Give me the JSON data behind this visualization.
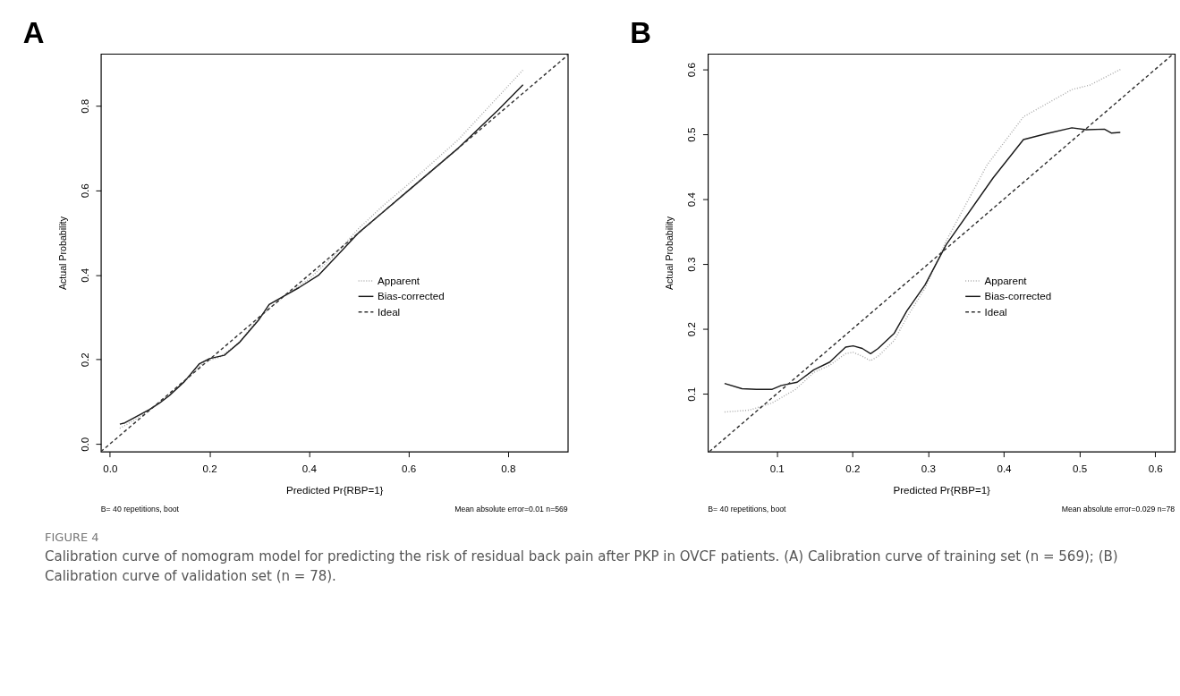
{
  "chart_data": [
    {
      "type": "line",
      "title": "A",
      "xlabel": "Predicted Pr{RBP=1}",
      "ylabel": "Actual Probability",
      "xlim": [
        -0.018,
        0.92
      ],
      "ylim": [
        -0.018,
        0.923
      ],
      "xticks": [
        {
          "value": 0,
          "label": "0.0"
        },
        0.2,
        0.4,
        0.6,
        0.8
      ],
      "yticks": [
        {
          "value": 0,
          "label": "0.0"
        },
        0.2,
        0.4,
        0.6,
        0.8
      ],
      "legend": "right",
      "grid": false,
      "annotations": [
        "B= 40 repetitions, boot",
        "Mean absolute error=0.01 n=569",
        "FIGURE 4",
        "Calibration curve of nomogram model for predicting the risk of residual back pain after PKP in OVCF patients. (A) Calibration curve of training set (n = 569); (B) Calibration curve of validation set (n = 78)."
      ],
      "series": [
        {
          "name": "Apparent",
          "color": "#a8a8a8",
          "line_style": "dotted",
          "x": [
            0.02,
            0.05,
            0.1,
            0.15,
            0.19,
            0.22,
            0.26,
            0.3,
            0.35,
            0.4,
            0.45,
            0.5,
            0.55,
            0.6,
            0.7,
            0.83
          ],
          "values": [
            0.037,
            0.057,
            0.097,
            0.148,
            0.195,
            0.205,
            0.24,
            0.3,
            0.35,
            0.39,
            0.445,
            0.51,
            0.565,
            0.615,
            0.72,
            0.885
          ]
        },
        {
          "name": "Bias-corrected",
          "color": "#1a1a1a",
          "line_style": "solid",
          "x": [
            0.02,
            0.03,
            0.05,
            0.08,
            0.1,
            0.12,
            0.15,
            0.18,
            0.2,
            0.23,
            0.26,
            0.3,
            0.32,
            0.35,
            0.38,
            0.42,
            0.46,
            0.5,
            0.55,
            0.6,
            0.7,
            0.78,
            0.83
          ],
          "values": [
            0.047,
            0.05,
            0.063,
            0.082,
            0.097,
            0.115,
            0.148,
            0.19,
            0.202,
            0.21,
            0.24,
            0.295,
            0.33,
            0.35,
            0.37,
            0.4,
            0.45,
            0.5,
            0.55,
            0.6,
            0.7,
            0.79,
            0.85
          ]
        },
        {
          "name": "Ideal",
          "color": "#333333",
          "line_style": "dashed",
          "x": [
            -0.018,
            0.92
          ],
          "values": [
            -0.018,
            0.92
          ]
        }
      ]
    },
    {
      "type": "line",
      "title": "B",
      "xlabel": "Predicted Pr{RBP=1}",
      "ylabel": "Actual Probability",
      "xlim": [
        0.009,
        0.626
      ],
      "ylim": [
        0.011,
        0.624
      ],
      "xticks": [
        0.1,
        0.2,
        0.3,
        0.4,
        0.5,
        0.6
      ],
      "yticks": [
        0.1,
        0.2,
        0.3,
        0.4,
        0.5,
        0.6
      ],
      "legend": "right",
      "grid": false,
      "annotations": [
        "B= 40 repetitions, boot",
        "Mean absolute error=0.029 n=78"
      ],
      "series": [
        {
          "name": "Apparent",
          "color": "#a8a8a8",
          "line_style": "dotted",
          "x": [
            0.031,
            0.064,
            0.094,
            0.125,
            0.149,
            0.17,
            0.191,
            0.201,
            0.213,
            0.224,
            0.234,
            0.255,
            0.272,
            0.296,
            0.324,
            0.378,
            0.426,
            0.49,
            0.514,
            0.554
          ],
          "values": [
            0.072,
            0.075,
            0.086,
            0.107,
            0.133,
            0.144,
            0.162,
            0.164,
            0.158,
            0.151,
            0.158,
            0.182,
            0.218,
            0.263,
            0.336,
            0.453,
            0.527,
            0.569,
            0.576,
            0.6
          ]
        },
        {
          "name": "Bias-corrected",
          "color": "#1a1a1a",
          "line_style": "solid",
          "x": [
            0.031,
            0.054,
            0.073,
            0.094,
            0.106,
            0.127,
            0.149,
            0.17,
            0.191,
            0.201,
            0.213,
            0.224,
            0.234,
            0.255,
            0.272,
            0.296,
            0.324,
            0.386,
            0.426,
            0.456,
            0.49,
            0.509,
            0.533,
            0.542,
            0.554
          ],
          "values": [
            0.116,
            0.108,
            0.107,
            0.107,
            0.113,
            0.118,
            0.137,
            0.149,
            0.172,
            0.174,
            0.17,
            0.162,
            0.17,
            0.193,
            0.228,
            0.268,
            0.33,
            0.433,
            0.492,
            0.501,
            0.51,
            0.507,
            0.508,
            0.502,
            0.503
          ]
        },
        {
          "name": "Ideal",
          "color": "#333333",
          "line_style": "dashed",
          "x": [
            0.011,
            0.624
          ],
          "values": [
            0.011,
            0.624
          ]
        }
      ]
    }
  ]
}
